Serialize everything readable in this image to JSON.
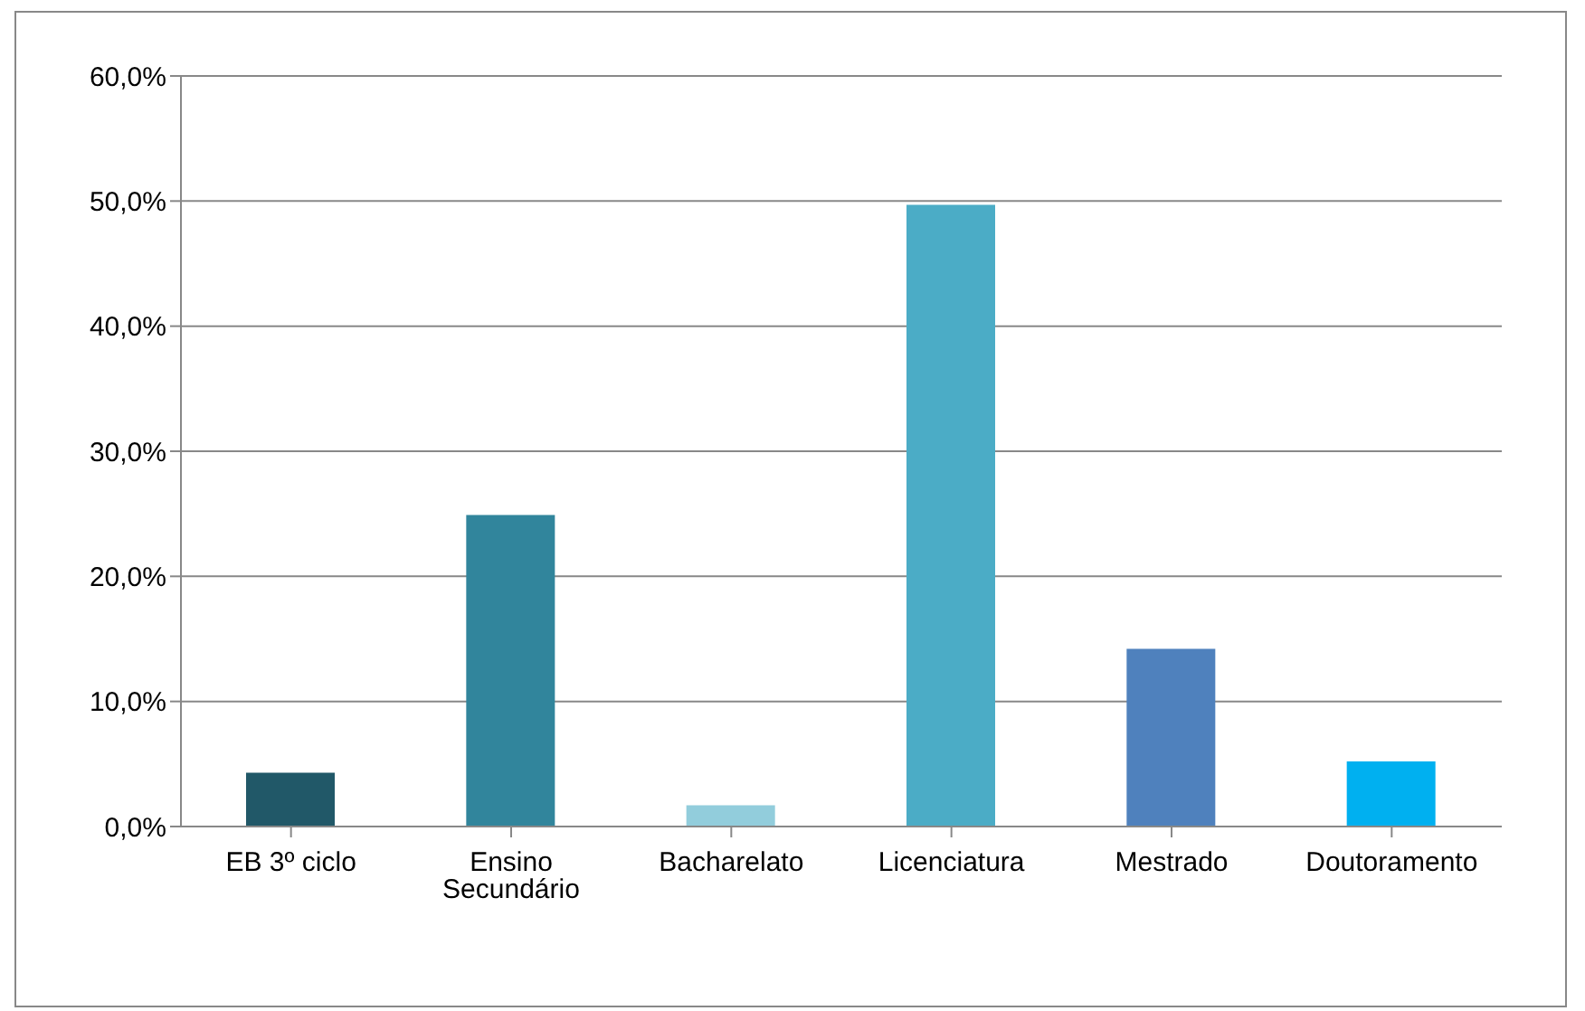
{
  "chart_data": {
    "type": "bar",
    "categories": [
      "EB 3º ciclo",
      "Ensino Secundário",
      "Bacharelato",
      "Licenciatura",
      "Mestrado",
      "Doutoramento"
    ],
    "values": [
      4.3,
      24.9,
      1.7,
      49.7,
      14.2,
      5.2
    ],
    "colors": [
      "#215868",
      "#31859c",
      "#92cddc",
      "#4bacc6",
      "#4f81bd",
      "#00b0f0"
    ],
    "ylim": [
      0,
      60
    ],
    "yticks": [
      {
        "value": 0,
        "label": "0,0%"
      },
      {
        "value": 10,
        "label": "10,0%"
      },
      {
        "value": 20,
        "label": "20,0%"
      },
      {
        "value": 30,
        "label": "30,0%"
      },
      {
        "value": 40,
        "label": "40,0%"
      },
      {
        "value": 50,
        "label": "50,0%"
      },
      {
        "value": 60,
        "label": "60,0%"
      }
    ],
    "grid": "y",
    "legend": false
  }
}
